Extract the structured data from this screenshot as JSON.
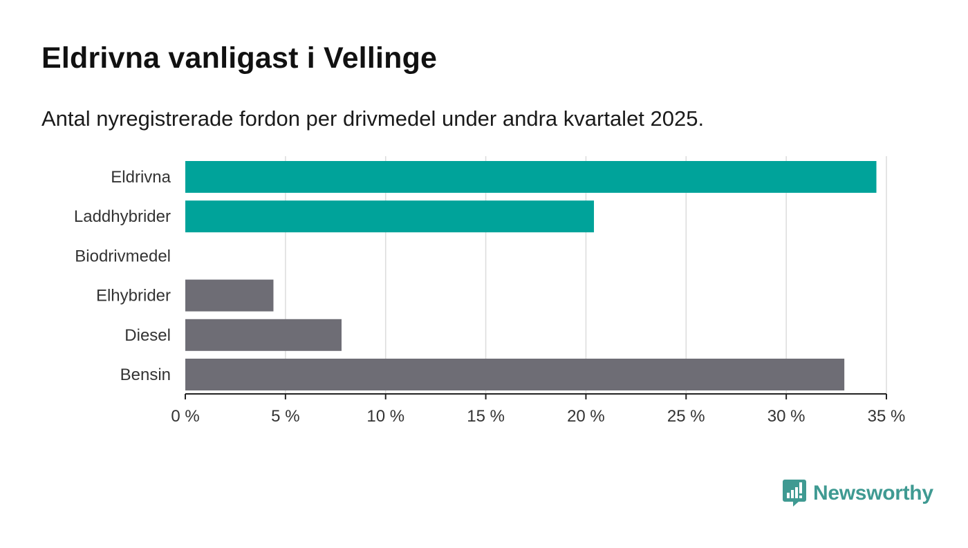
{
  "title": "Eldrivna vanligast i Vellinge",
  "subtitle": "Antal nyregistrerade fordon per drivmedel under andra kvartalet 2025.",
  "brand": {
    "name": "Newsworthy",
    "color": "#3f9a92"
  },
  "colors": {
    "highlight": "#00a39a",
    "other": "#6e6d75",
    "grid": "#dcdcdc",
    "axis": "#222222"
  },
  "chart_data": {
    "type": "bar",
    "orientation": "horizontal",
    "categories": [
      "Eldrivna",
      "Laddhybrider",
      "Biodrivmedel",
      "Elhybrider",
      "Diesel",
      "Bensin"
    ],
    "values": [
      34.5,
      20.4,
      0,
      4.4,
      7.8,
      32.9
    ],
    "bar_colors": [
      "#00a39a",
      "#00a39a",
      "#6e6d75",
      "#6e6d75",
      "#6e6d75",
      "#6e6d75"
    ],
    "xlim": [
      0,
      35
    ],
    "xticks": [
      0,
      5,
      10,
      15,
      20,
      25,
      30,
      35
    ],
    "xtick_labels": [
      "0 %",
      "5 %",
      "10 %",
      "15 %",
      "20 %",
      "25 %",
      "30 %",
      "35 %"
    ],
    "grid": true
  }
}
